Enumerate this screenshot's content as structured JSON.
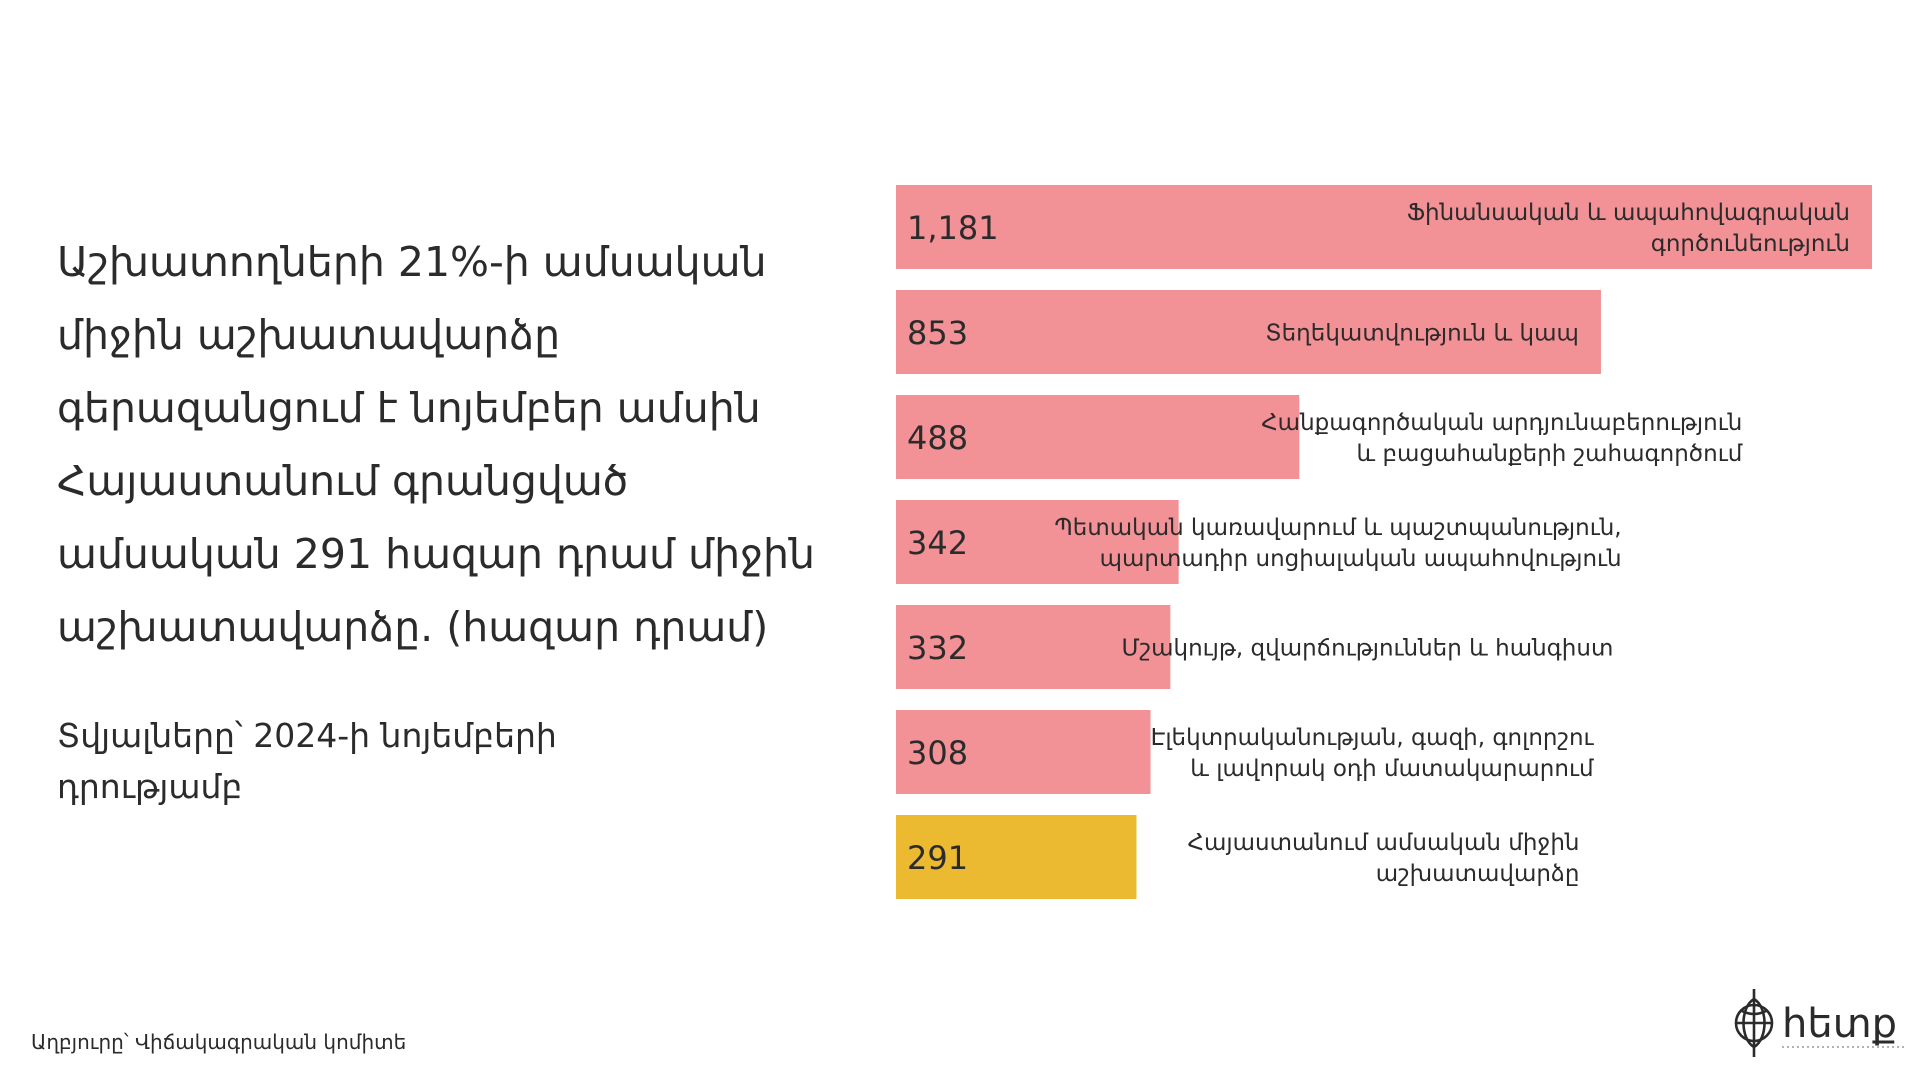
{
  "headline": "Աշխատողների 21%-ի ամսական միջին աշխատավարձը գերազանցում է նոյեմբեր ամսին Հայաստանում գրանցված ամսական 291 հազար դրամ միջին աշխատավարձը. (հազար դրամ)",
  "subtitle": "Տվյալները՝ 2024-ի նոյեմբերի դրությամբ",
  "source": "Աղբյուրը՝ Վիճակագրական կոմիտե",
  "logo": {
    "text": "hետք",
    "icon": "compass-globe-icon"
  },
  "colors": {
    "sector_bar": "#f29196",
    "average_bar": "#ebba31",
    "text": "#2b2b2b"
  },
  "chart_data": {
    "type": "bar",
    "orientation": "horizontal",
    "categories": [
      [
        "Ֆինանսական և ապահովագրական",
        "գործունեություն"
      ],
      [
        "Տեղեկատվություն և կապ"
      ],
      [
        "Հանքագործական արդյունաբերություն",
        "և բացահանքերի շահագործում"
      ],
      [
        "Պետական կառավարում և պաշտպանություն,",
        "պարտադիր սոցիալական ապահովություն"
      ],
      [
        "Մշակույթ, զվարճություններ և հանգիստ"
      ],
      [
        "Էլեկտրականության, գազի, գոլորշու",
        "և լավորակ օդի մատակարարում"
      ],
      [
        "Հայաստանում ամսական միջին",
        "աշխատավարձը"
      ]
    ],
    "values": [
      1181,
      853,
      488,
      342,
      332,
      308,
      291
    ],
    "value_labels": [
      "1,181",
      "853",
      "488",
      "342",
      "332",
      "308",
      "291"
    ],
    "highlight_index": 6,
    "xlim": [
      0,
      1181
    ]
  }
}
